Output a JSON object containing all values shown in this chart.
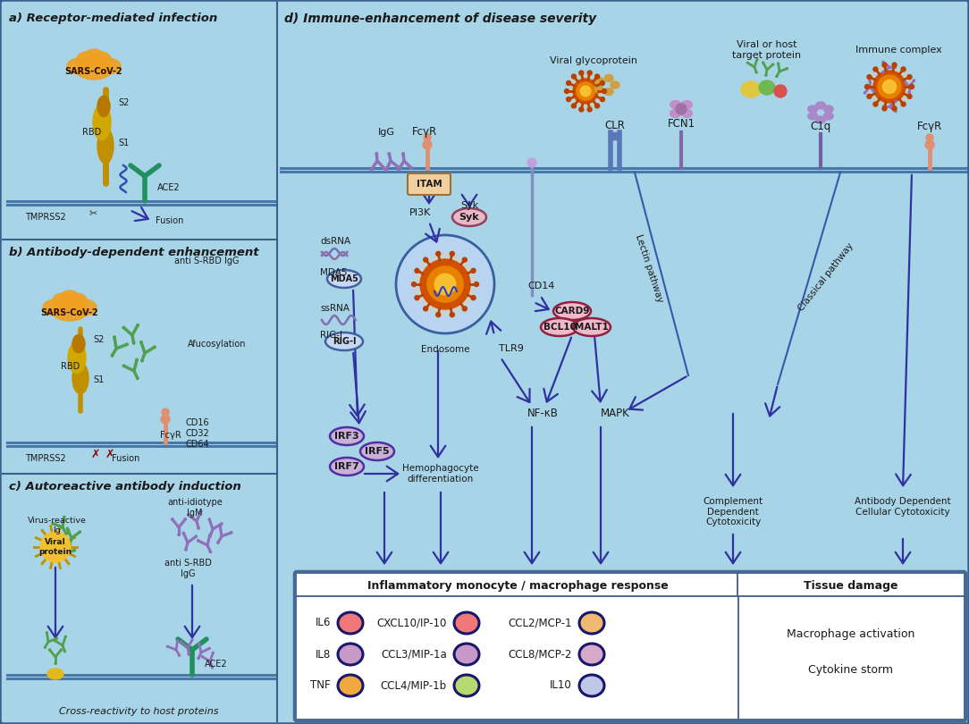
{
  "background_color": "#a8d4e8",
  "border_color": "#3a5f8a",
  "section_a_title": "a) Receptor-mediated infection",
  "section_b_title": "b) Antibody-dependent enhancement",
  "section_c_title": "c) Autoreactive antibody induction",
  "section_d_title": "d) Immune-enhancement of disease severity",
  "arrow_color": "#3030a0",
  "text_color": "#1a1a1a",
  "membrane_color": "#4878a8",
  "virus_orange_dark": "#d05000",
  "virus_orange_mid": "#e88000",
  "virus_orange_light": "#f8c030",
  "spike_tip": "#b84000",
  "green_antibody": "#50a050",
  "purple_antibody": "#9070b8",
  "teal_receptor": "#209060",
  "salmon_receptor": "#e09070",
  "box_bg": "#c8e4f4",
  "legend_bg": "white",
  "cytokines": [
    {
      "label": "IL6",
      "color": "#f07878",
      "col": 0,
      "row": 0
    },
    {
      "label": "IL8",
      "color": "#c898c8",
      "col": 0,
      "row": 1
    },
    {
      "label": "TNF",
      "color": "#f0a840",
      "col": 0,
      "row": 2
    },
    {
      "label": "CXCL10/IP-10",
      "color": "#f07878",
      "col": 1,
      "row": 0
    },
    {
      "label": "CCL3/MIP-1a",
      "color": "#c898c8",
      "col": 1,
      "row": 1
    },
    {
      "label": "CCL4/MIP-1b",
      "color": "#b8d870",
      "col": 1,
      "row": 2
    },
    {
      "label": "CCL2/MCP-1",
      "color": "#f0b870",
      "col": 2,
      "row": 0
    },
    {
      "label": "CCL8/MCP-2",
      "color": "#d8a8c8",
      "col": 2,
      "row": 1
    },
    {
      "label": "IL10",
      "color": "#c0c8e8",
      "col": 2,
      "row": 2
    }
  ]
}
